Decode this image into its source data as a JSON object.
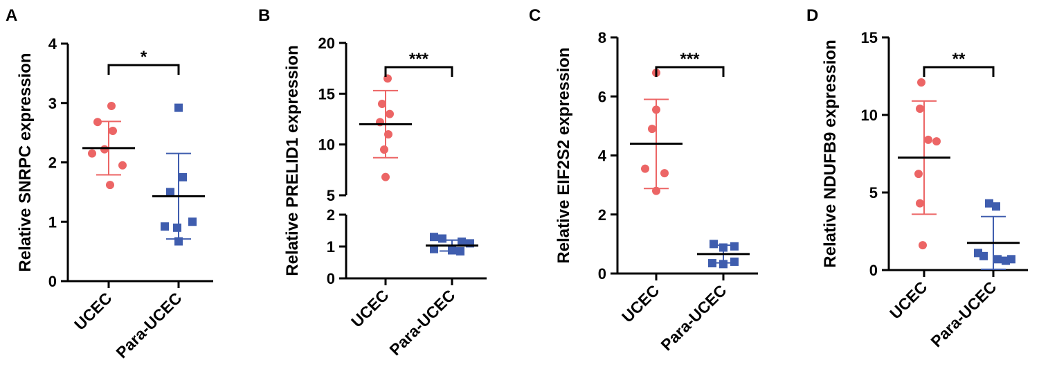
{
  "colors": {
    "group1": "#EC6565",
    "group2": "#3F5DAE",
    "axis": "#000000"
  },
  "chart_data": [
    {
      "type": "scatter",
      "panel_label": "A",
      "ylabel": "Relative SNRPC expression",
      "categories": [
        "UCEC",
        "Para-UCEC"
      ],
      "ylim": [
        0,
        4
      ],
      "yticks": [
        0,
        1,
        2,
        3,
        4
      ],
      "series": [
        {
          "name": "UCEC",
          "values": [
            2.95,
            2.53,
            2.68,
            2.22,
            2.15,
            1.95,
            1.62
          ],
          "mean": 2.24,
          "sd_upper": 2.69,
          "sd_lower": 1.79
        },
        {
          "name": "Para-UCEC",
          "values": [
            2.92,
            1.75,
            1.5,
            0.92,
            1.0,
            0.9,
            0.67
          ],
          "mean": 1.43,
          "sd_upper": 2.15,
          "sd_lower": 0.71
        }
      ],
      "significance": "*"
    },
    {
      "type": "scatter",
      "panel_label": "B",
      "ylabel": "Relative PRELID1 expression",
      "categories": [
        "UCEC",
        "Para-UCEC"
      ],
      "broken_axis": true,
      "ylim_lower": [
        0,
        2
      ],
      "ylim_upper": [
        5,
        20
      ],
      "yticks_lower": [
        0,
        1,
        2
      ],
      "yticks_upper": [
        5,
        10,
        15,
        20
      ],
      "series": [
        {
          "name": "UCEC",
          "values": [
            16.5,
            14.0,
            13.0,
            12.2,
            11.0,
            9.5,
            6.8
          ],
          "mean": 12.0,
          "sd_upper": 15.3,
          "sd_lower": 8.7
        },
        {
          "name": "Para-UCEC",
          "values": [
            1.3,
            1.25,
            1.15,
            1.1,
            0.92,
            0.88,
            0.85
          ],
          "mean": 1.03,
          "sd_upper": 1.2,
          "sd_lower": 0.86
        }
      ],
      "significance": "***"
    },
    {
      "type": "scatter",
      "panel_label": "C",
      "ylabel": "Relative EIF2S2 expression",
      "categories": [
        "UCEC",
        "Para-UCEC"
      ],
      "ylim": [
        0,
        8
      ],
      "yticks": [
        0,
        2,
        4,
        6,
        8
      ],
      "series": [
        {
          "name": "UCEC",
          "values": [
            6.8,
            5.55,
            4.9,
            3.55,
            3.4,
            2.8
          ],
          "mean": 4.4,
          "sd_upper": 5.9,
          "sd_lower": 2.88
        },
        {
          "name": "Para-UCEC",
          "values": [
            1.0,
            0.92,
            0.88,
            0.4,
            0.35,
            0.32
          ],
          "mean": 0.66,
          "sd_upper": 0.96,
          "sd_lower": 0.36
        }
      ],
      "significance": "***"
    },
    {
      "type": "scatter",
      "panel_label": "D",
      "ylabel": "Relative NDUFB9 expression",
      "categories": [
        "UCEC",
        "Para-UCEC"
      ],
      "ylim": [
        0,
        15
      ],
      "yticks": [
        0,
        5,
        10,
        15
      ],
      "series": [
        {
          "name": "UCEC",
          "values": [
            12.1,
            10.4,
            8.4,
            8.3,
            6.2,
            4.3,
            1.6
          ],
          "mean": 7.25,
          "sd_upper": 10.9,
          "sd_lower": 3.6
        },
        {
          "name": "Para-UCEC",
          "values": [
            4.3,
            4.1,
            1.1,
            0.9,
            0.7,
            0.7,
            0.6
          ],
          "mean": 1.75,
          "sd_upper": 3.45,
          "sd_lower": 0.05
        }
      ],
      "significance": "**"
    }
  ]
}
